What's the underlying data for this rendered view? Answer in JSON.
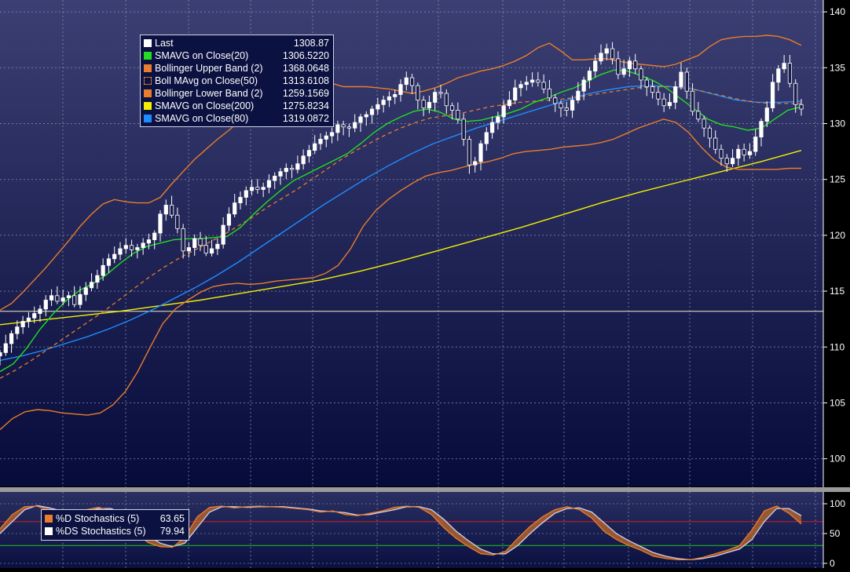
{
  "colors": {
    "background_top": "#3c3f73",
    "background_bottom": "#060b3a",
    "axis_bg": "#000000",
    "grid": "#8a8fb0",
    "last": "#ffffff",
    "smavg20": "#22dd22",
    "bollinger_upper": "#e87d2b",
    "boll_mavg50": "#e87d2b",
    "bollinger_lower": "#e87d2b",
    "smavg200": "#f2f000",
    "smavg80": "#1e8cff",
    "stoch_d": "#e87d2b",
    "stoch_ds": "#ffffff",
    "stoch_upper_ref": "#d02020",
    "stoch_lower_ref": "#20c020"
  },
  "legend": [
    {
      "label": "Last",
      "value": "1308.87",
      "color": "#ffffff",
      "style": "solid"
    },
    {
      "label": "SMAVG on Close(20)",
      "value": "1306.5220",
      "color": "#22dd22",
      "style": "solid"
    },
    {
      "label": "Bollinger Upper Band (2)",
      "value": "1368.0648",
      "color": "#e87d2b",
      "style": "solid"
    },
    {
      "label": "Boll MAvg on Close(50)",
      "value": "1313.6108",
      "color": "#e87d2b",
      "style": "dashed"
    },
    {
      "label": "Bollinger Lower Band (2)",
      "value": "1259.1569",
      "color": "#e87d2b",
      "style": "solid"
    },
    {
      "label": "SMAVG on Close(200)",
      "value": "1275.8234",
      "color": "#f2f000",
      "style": "solid"
    },
    {
      "label": "SMAVG on Close(80)",
      "value": "1319.0872",
      "color": "#1e8cff",
      "style": "solid"
    }
  ],
  "stoch_legend": [
    {
      "label": "%D Stochastics (5)",
      "value": "63.65",
      "color": "#e87d2b"
    },
    {
      "label": "%DS Stochastics (5)",
      "value": "79.94",
      "color": "#ffffff"
    }
  ],
  "chart_data": [
    {
      "type": "line",
      "panel": "price",
      "ylim": [
        98.5,
        140.5
      ],
      "y_ticks": [
        100,
        105,
        110,
        115,
        120,
        125,
        130,
        135,
        140
      ],
      "horizontal_reference": 113.2,
      "grid": true,
      "x_count": 253,
      "candles_sample_every": 2,
      "close": [
        109.5,
        110.3,
        111.2,
        111.8,
        112.3,
        112.6,
        113.0,
        113.4,
        114.2,
        114.6,
        114.1,
        114.4,
        114.6,
        113.8,
        114.7,
        115.3,
        115.8,
        116.4,
        117.3,
        117.9,
        118.3,
        118.8,
        119.1,
        118.7,
        118.9,
        119.3,
        119.6,
        120.2,
        121.9,
        122.7,
        121.8,
        120.6,
        118.6,
        118.9,
        119.7,
        119.1,
        118.4,
        118.8,
        119.2,
        120.9,
        121.9,
        122.9,
        123.4,
        124.0,
        124.3,
        124.1,
        124.3,
        124.9,
        125.3,
        125.7,
        126.0,
        125.9,
        126.4,
        127.1,
        127.6,
        128.2,
        128.6,
        128.9,
        129.2,
        129.9,
        129.7,
        129.6,
        130.1,
        130.6,
        130.8,
        131.3,
        131.7,
        132.1,
        132.4,
        132.6,
        133.5,
        134.1,
        133.4,
        132.1,
        131.4,
        131.9,
        132.8,
        132.7,
        131.6,
        131.2,
        130.4,
        128.6,
        126.3,
        126.6,
        128.2,
        129.2,
        130.1,
        130.6,
        131.6,
        132.1,
        133.2,
        133.5,
        133.7,
        133.9,
        133.7,
        133.1,
        132.3,
        131.8,
        131.4,
        131.2,
        132.1,
        132.9,
        133.9,
        134.7,
        135.6,
        136.3,
        136.7,
        135.8,
        134.4,
        134.9,
        135.6,
        134.9,
        133.9,
        133.3,
        132.8,
        132.2,
        131.6,
        131.9,
        133.3,
        134.6,
        132.9,
        131.1,
        130.4,
        129.6,
        128.7,
        127.7,
        126.9,
        126.4,
        126.9,
        127.7,
        127.2,
        127.5,
        128.8,
        130.2,
        131.4,
        133.7,
        134.9,
        135.4,
        133.6,
        131.7,
        131.3
      ],
      "bollinger_upper": [
        113.3,
        113.9,
        114.9,
        116.0,
        117.1,
        118.3,
        119.5,
        120.8,
        121.9,
        122.8,
        123.2,
        123.0,
        122.9,
        122.9,
        123.4,
        124.6,
        125.7,
        126.8,
        127.7,
        128.6,
        129.4,
        130.3,
        131.4,
        132.6,
        133.4,
        133.9,
        134.2,
        134.5,
        134.2,
        133.6,
        133.3,
        133.3,
        133.3,
        133.2,
        133.1,
        132.9,
        132.7,
        132.9,
        133.2,
        133.6,
        134.1,
        134.4,
        134.7,
        134.9,
        135.2,
        135.6,
        136.1,
        136.8,
        137.2,
        136.5,
        135.7,
        135.7,
        135.8,
        135.8,
        135.6,
        135.4,
        135.3,
        135.2,
        135.1,
        135.3,
        135.7,
        136.1,
        136.9,
        137.5,
        137.7,
        137.8,
        137.8,
        137.9,
        137.8,
        137.5,
        137.0
      ],
      "bollinger_lower": [
        102.6,
        103.6,
        104.2,
        104.4,
        104.3,
        104.1,
        104.0,
        103.9,
        104.1,
        104.8,
        106.0,
        107.8,
        110.0,
        112.1,
        113.4,
        114.2,
        114.9,
        115.4,
        115.6,
        115.7,
        115.6,
        115.7,
        115.9,
        116.0,
        116.1,
        116.2,
        116.6,
        117.3,
        118.8,
        120.8,
        122.2,
        123.2,
        124.0,
        124.7,
        125.3,
        125.6,
        125.8,
        126.1,
        126.4,
        126.6,
        126.9,
        127.3,
        127.5,
        127.6,
        127.7,
        127.9,
        128.0,
        128.1,
        128.3,
        128.6,
        129.1,
        129.6,
        130.0,
        130.4,
        130.1,
        129.2,
        127.9,
        126.8,
        126.1,
        125.9,
        125.9,
        125.9,
        125.9,
        126.0,
        126.0
      ],
      "boll_mavg50": [
        107.2,
        107.9,
        108.7,
        109.6,
        110.5,
        111.4,
        112.3,
        113.2,
        114.2,
        115.2,
        116.2,
        117.1,
        117.9,
        118.6,
        119.3,
        120.0,
        120.8,
        121.6,
        122.5,
        123.3,
        124.1,
        125.0,
        125.9,
        126.8,
        127.6,
        128.3,
        129.0,
        129.6,
        130.1,
        130.5,
        130.7,
        130.9,
        131.2,
        131.5,
        131.7,
        131.9,
        132.0,
        132.1,
        132.2,
        132.4,
        132.6,
        132.8,
        133.0,
        133.2,
        133.3,
        133.3,
        133.2,
        133.0,
        132.7,
        132.4,
        132.1,
        131.9,
        131.8,
        131.8,
        131.8
      ],
      "smavg20": [
        107.8,
        108.5,
        109.9,
        111.6,
        113.0,
        114.2,
        115.1,
        115.7,
        116.5,
        117.5,
        118.4,
        119.0,
        119.3,
        119.6,
        119.7,
        119.7,
        119.8,
        119.9,
        120.7,
        121.9,
        123.0,
        124.0,
        124.9,
        125.5,
        126.1,
        126.7,
        127.3,
        128.2,
        129.2,
        130.0,
        130.6,
        131.1,
        131.3,
        131.0,
        130.4,
        130.2,
        130.3,
        130.6,
        130.9,
        131.3,
        131.9,
        132.3,
        132.8,
        133.2,
        133.8,
        134.4,
        134.8,
        134.7,
        134.3,
        133.8,
        133.1,
        132.2,
        131.3,
        130.4,
        129.9,
        129.7,
        129.4,
        129.6,
        130.4,
        131.2,
        131.5
      ],
      "smavg80": [
        108.8,
        109.2,
        109.7,
        110.3,
        110.9,
        111.6,
        112.4,
        113.3,
        114.3,
        115.3,
        116.4,
        117.6,
        118.9,
        120.2,
        121.5,
        122.8,
        124.0,
        125.2,
        126.3,
        127.3,
        128.2,
        128.9,
        129.6,
        130.2,
        130.8,
        131.4,
        132.0,
        132.6,
        133.0,
        133.3,
        133.4,
        133.3,
        133.1,
        132.6,
        132.1,
        131.9,
        131.9,
        132.0
      ],
      "smavg200": [
        112.0,
        112.4,
        112.8,
        113.2,
        113.7,
        114.2,
        114.8,
        115.4,
        116.0,
        116.8,
        117.7,
        118.7,
        119.7,
        120.7,
        121.8,
        122.9,
        123.9,
        124.8,
        125.7,
        126.6,
        127.6
      ]
    },
    {
      "type": "area",
      "panel": "stochastics",
      "ylim": [
        0,
        100
      ],
      "y_ticks": [
        0,
        50,
        100
      ],
      "upper_ref": 70,
      "lower_ref": 30,
      "d": [
        58,
        82,
        95,
        96,
        88,
        84,
        86,
        90,
        94,
        88,
        74,
        52,
        35,
        28,
        27,
        44,
        78,
        94,
        96,
        93,
        95,
        96,
        95,
        94,
        92,
        90,
        86,
        88,
        82,
        80,
        84,
        88,
        94,
        96,
        94,
        82,
        60,
        42,
        28,
        16,
        14,
        20,
        42,
        62,
        78,
        90,
        95,
        90,
        76,
        54,
        40,
        30,
        22,
        12,
        8,
        6,
        6,
        10,
        16,
        22,
        30,
        56,
        88,
        96,
        84,
        66
      ],
      "ds": [
        50,
        70,
        90,
        97,
        93,
        88,
        84,
        87,
        92,
        92,
        84,
        66,
        46,
        34,
        28,
        34,
        60,
        86,
        95,
        95,
        94,
        95,
        95,
        95,
        93,
        91,
        88,
        87,
        85,
        81,
        82,
        86,
        90,
        95,
        95,
        90,
        74,
        54,
        38,
        24,
        16,
        16,
        30,
        50,
        68,
        84,
        92,
        93,
        86,
        68,
        50,
        38,
        28,
        18,
        12,
        8,
        6,
        8,
        12,
        18,
        24,
        40,
        70,
        92,
        92,
        80
      ]
    }
  ]
}
